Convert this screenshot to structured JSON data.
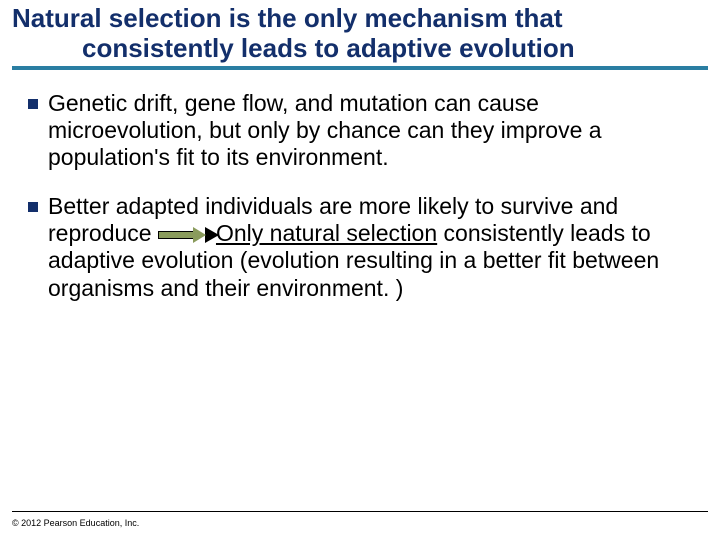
{
  "colors": {
    "title_color": "#132f6b",
    "rule_color": "#2a7ea2",
    "bullet_color": "#132f6b",
    "arrow_fill": "#8a9b5c",
    "text_color": "#000000",
    "background": "#ffffff"
  },
  "title": {
    "line1": "Natural selection is the only mechanism that",
    "line2": "consistently leads to adaptive evolution",
    "fontsize": 26,
    "fontweight": "bold"
  },
  "bullets": [
    {
      "text": "Genetic drift, gene flow, and mutation can cause microevolution, but only by chance can they improve a population's fit to its environment."
    },
    {
      "pre_arrow": "Better adapted individuals are more likely to survive and reproduce ",
      "post_arrow_underlined": "Only natural selection",
      "post_arrow_rest": " consistently leads to adaptive evolution (evolution resulting in a better fit between organisms and their environment. )"
    }
  ],
  "body_fontsize": 23,
  "footer": {
    "copyright": "© 2012 Pearson Education, Inc."
  }
}
